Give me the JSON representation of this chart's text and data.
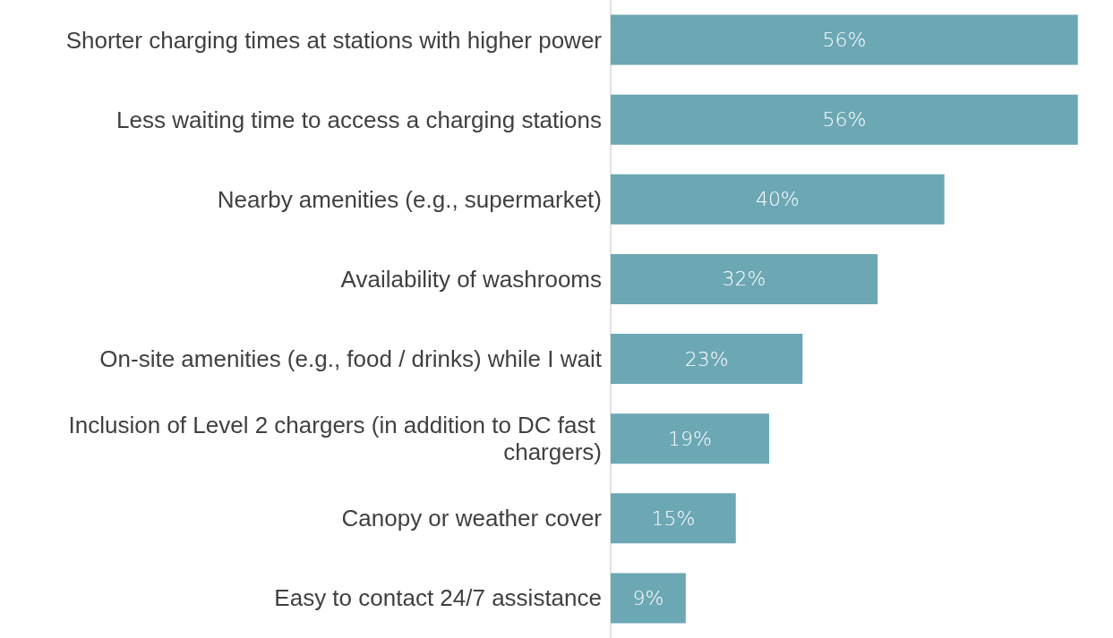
{
  "chart_data": {
    "type": "bar",
    "orientation": "horizontal",
    "categories": [
      "Shorter charging times at stations with higher power",
      "Less waiting time to access a charging stations",
      "Nearby amenities (e.g., supermarket)",
      "Availability of washrooms",
      "On-site amenities (e.g., food / drinks) while I wait",
      "Inclusion of Level 2 chargers (in addition to DC fast chargers)",
      "Canopy or weather cover",
      "Easy to contact 24/7 assistance"
    ],
    "values": [
      56,
      56,
      40,
      32,
      23,
      19,
      15,
      9
    ],
    "value_labels": [
      "56%",
      "56%",
      "40%",
      "32%",
      "23%",
      "19%",
      "15%",
      "9%"
    ],
    "color": "#6ca7b4"
  }
}
